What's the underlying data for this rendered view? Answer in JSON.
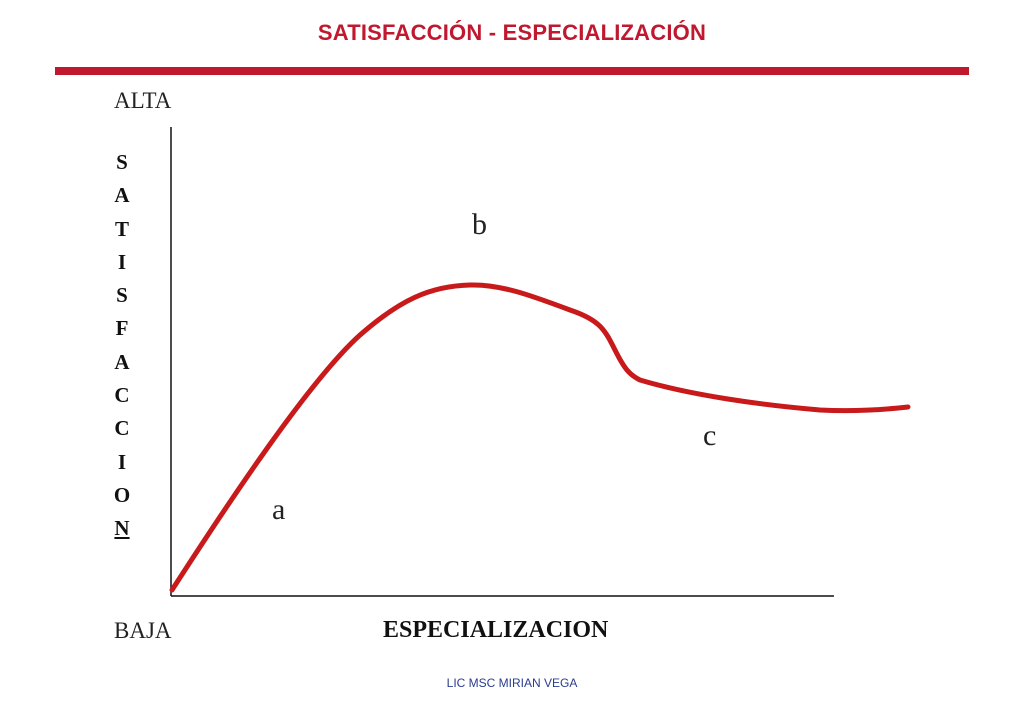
{
  "title": "SATISFACCIÓN - ESPECIALIZACIÓN",
  "y_axis": {
    "title_letters": [
      "S",
      "A",
      "T",
      "I",
      "S",
      "F",
      "A",
      "C",
      "C",
      "I",
      "O",
      "N"
    ],
    "high_label": "ALTA",
    "low_label": "BAJA"
  },
  "x_axis": {
    "title": "ESPECIALIZACION"
  },
  "curve": {
    "color": "#c81a1a",
    "point_labels": {
      "a": "a",
      "b": "b",
      "c": "c"
    }
  },
  "colors": {
    "title": "#c0182f",
    "rule": "#c0182f",
    "footer": "#2a3c8f"
  },
  "footer": "LIC MSC MIRIAN VEGA"
}
